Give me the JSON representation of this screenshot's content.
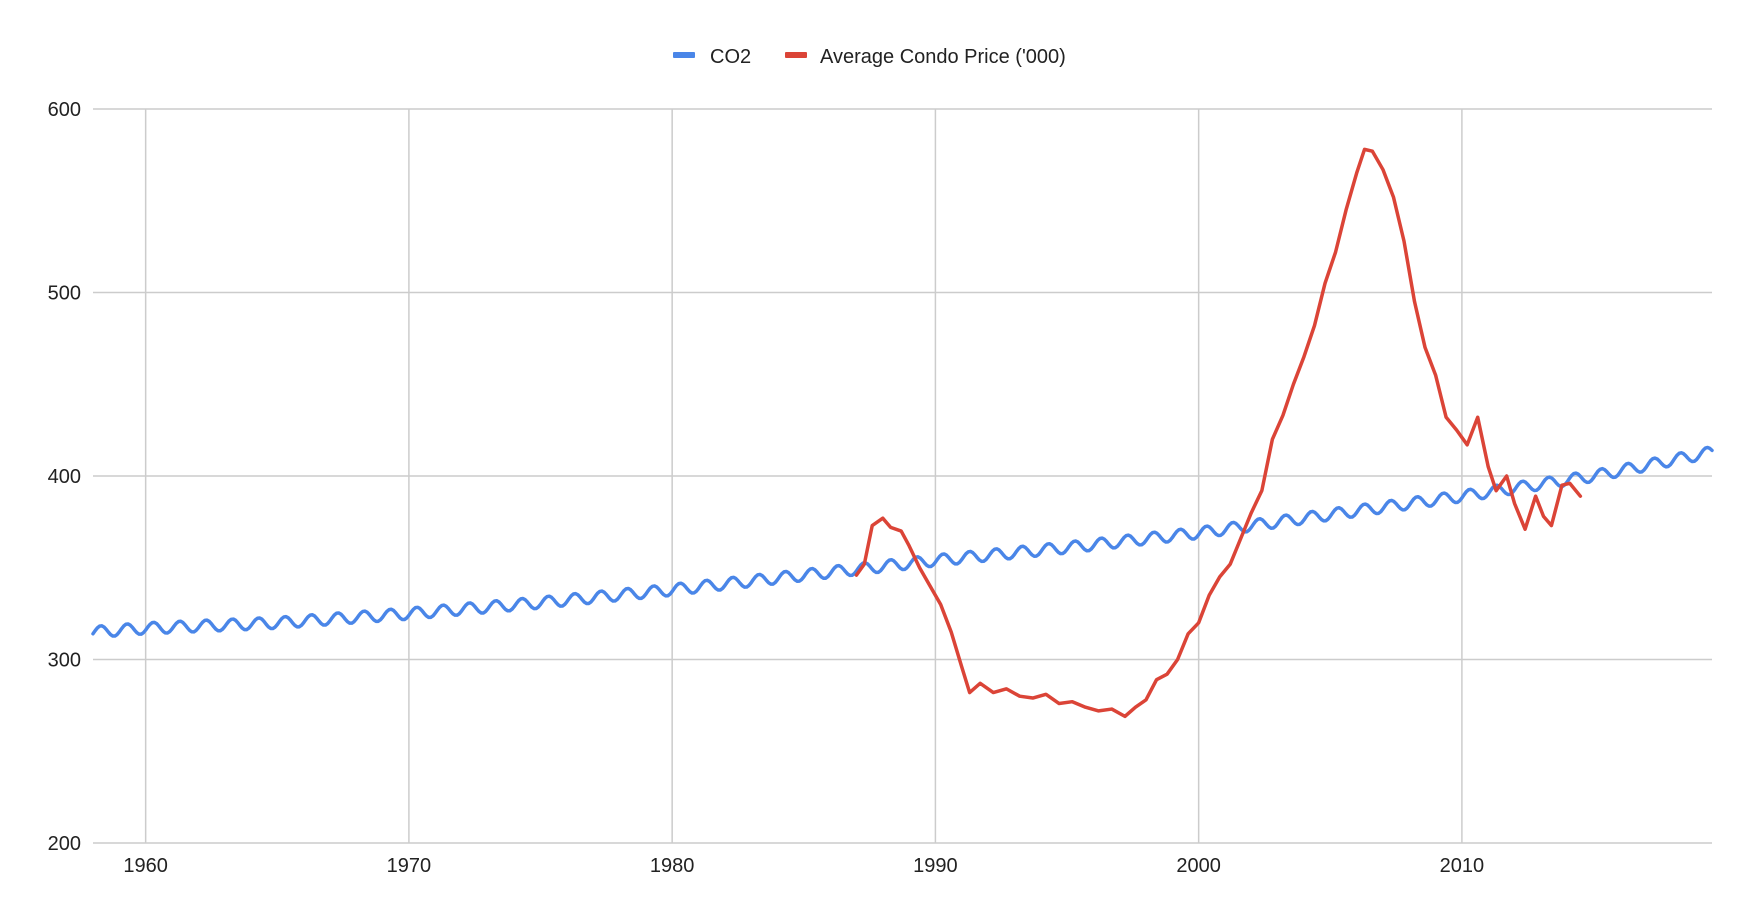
{
  "colors": {
    "co2": "#4a86e8",
    "condo": "#db4437",
    "grid": "#cccccc",
    "text": "#222222"
  },
  "legend": {
    "co2_label": "CO2",
    "condo_label": "Average Condo Price ('000)"
  },
  "chart_data": {
    "type": "line",
    "title": "",
    "xlabel": "",
    "ylabel": "",
    "xlim": [
      1958,
      2019.5
    ],
    "ylim": [
      200,
      600
    ],
    "grid": true,
    "legend_position": "top",
    "x_ticks": [
      "1960",
      "1970",
      "1980",
      "1990",
      "2000",
      "2010"
    ],
    "y_ticks": [
      "200",
      "300",
      "400",
      "500",
      "600"
    ],
    "series": [
      {
        "name": "CO2",
        "seasonal": true,
        "x": [
          1958.0,
          1960,
          1965,
          1970,
          1975,
          1980,
          1985,
          1990,
          1995,
          2000,
          2005,
          2010,
          2015,
          2019.5
        ],
        "values": [
          315,
          317,
          320,
          325,
          331,
          338,
          346,
          354,
          361,
          369,
          379,
          389,
          400,
          413
        ]
      },
      {
        "name": "Average Condo Price ('000)",
        "x": [
          1987.0,
          1987.3,
          1987.6,
          1988.0,
          1988.3,
          1988.7,
          1989.0,
          1989.4,
          1989.8,
          1990.2,
          1990.6,
          1991.0,
          1991.3,
          1991.7,
          1992.2,
          1992.7,
          1993.2,
          1993.7,
          1994.2,
          1994.7,
          1995.2,
          1995.7,
          1996.2,
          1996.7,
          1997.2,
          1997.6,
          1998.0,
          1998.4,
          1998.8,
          1999.2,
          1999.6,
          2000.0,
          2000.4,
          2000.8,
          2001.2,
          2001.6,
          2002.0,
          2002.4,
          2002.8,
          2003.2,
          2003.6,
          2004.0,
          2004.4,
          2004.8,
          2005.2,
          2005.6,
          2006.0,
          2006.3,
          2006.6,
          2007.0,
          2007.4,
          2007.8,
          2008.2,
          2008.6,
          2009.0,
          2009.4,
          2009.8,
          2010.2,
          2010.6,
          2011.0,
          2011.3,
          2011.7,
          2012.0,
          2012.4,
          2012.8,
          2013.1,
          2013.4,
          2013.8,
          2014.1,
          2014.5
        ],
        "values": [
          346,
          352,
          373,
          377,
          372,
          370,
          362,
          350,
          340,
          330,
          315,
          296,
          282,
          287,
          282,
          284,
          280,
          279,
          281,
          276,
          277,
          274,
          272,
          273,
          269,
          274,
          278,
          289,
          292,
          300,
          314,
          320,
          335,
          345,
          352,
          366,
          380,
          392,
          420,
          433,
          450,
          465,
          482,
          505,
          522,
          545,
          565,
          578,
          577,
          567,
          552,
          528,
          495,
          470,
          455,
          432,
          425,
          417,
          432,
          405,
          392,
          400,
          385,
          371,
          389,
          378,
          373,
          395,
          396,
          389
        ]
      }
    ]
  }
}
